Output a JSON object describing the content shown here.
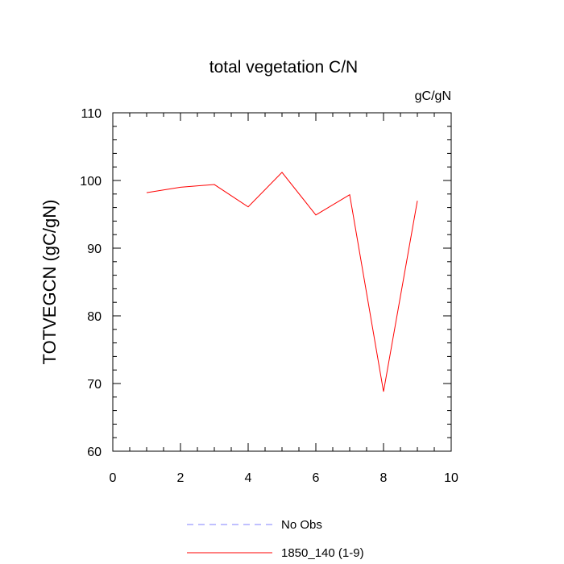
{
  "chart_data": {
    "type": "line",
    "title": "total vegetation C/N",
    "units": "gC/gN",
    "xlabel": "",
    "ylabel": "TOTVEGCN  (gC/gN)",
    "xlim": [
      0,
      10
    ],
    "ylim": [
      60,
      110
    ],
    "x_ticks": [
      0,
      2,
      4,
      6,
      8,
      10
    ],
    "y_ticks": [
      60,
      70,
      80,
      90,
      100,
      110
    ],
    "grid": false,
    "legend_position": "bottom",
    "series": [
      {
        "name": "No Obs",
        "color": "#8080ff",
        "dash": true,
        "x": [],
        "y": []
      },
      {
        "name": "1850_140 (1-9)",
        "color": "#ff0000",
        "dash": false,
        "x": [
          1,
          2,
          3,
          4,
          5,
          6,
          7,
          8,
          9
        ],
        "y": [
          98.2,
          99.0,
          99.4,
          96.1,
          101.2,
          94.9,
          97.9,
          68.8,
          97.0
        ]
      }
    ]
  }
}
